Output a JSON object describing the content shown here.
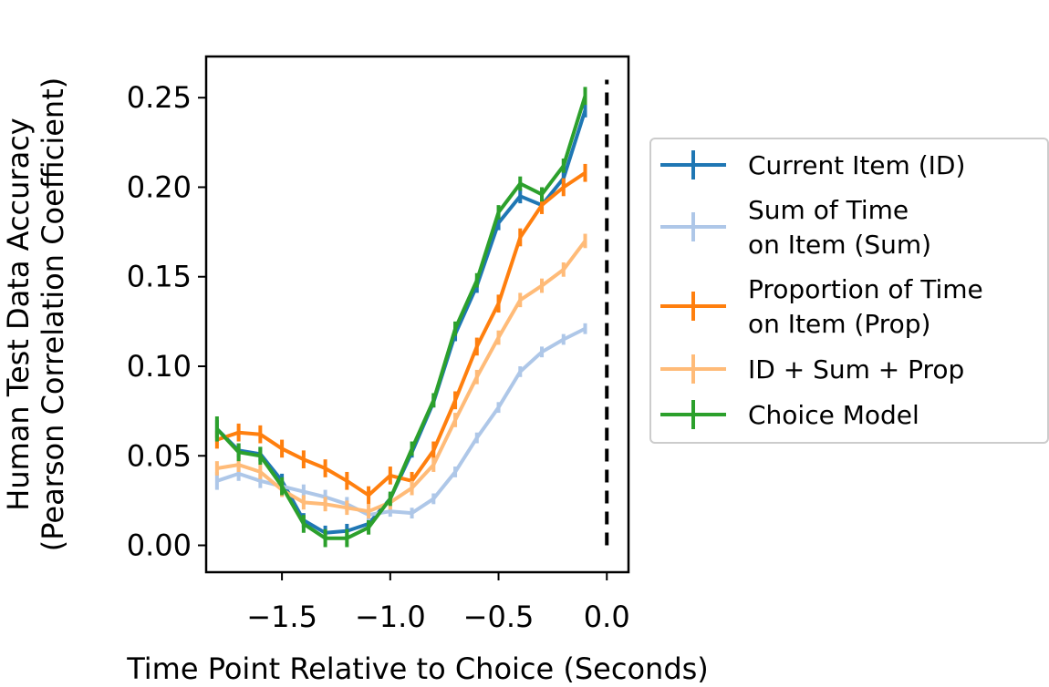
{
  "chart_data": {
    "type": "line",
    "title": "",
    "xlabel": "Time Point Relative to Choice (Seconds)",
    "ylabel_line1": "Human Test Data Accuracy",
    "ylabel_line2": "(Pearson Correlation Coefficient)",
    "xlim": [
      -1.85,
      0.1
    ],
    "ylim": [
      -0.015,
      0.273
    ],
    "xticks": [
      -1.5,
      -1.0,
      -0.5,
      0.0
    ],
    "xtick_labels": [
      "−1.5",
      "−1.0",
      "−0.5",
      "0.0"
    ],
    "yticks": [
      0.0,
      0.05,
      0.1,
      0.15,
      0.2,
      0.25
    ],
    "ytick_labels": [
      "0.00",
      "0.05",
      "0.10",
      "0.15",
      "0.20",
      "0.25"
    ],
    "vline": {
      "x": 0.0,
      "y_range": [
        0.0,
        0.26
      ],
      "style": "dashed",
      "color": "#000000"
    },
    "legend_position": "right, outside plot",
    "x": [
      -1.8,
      -1.7,
      -1.6,
      -1.5,
      -1.4,
      -1.3,
      -1.2,
      -1.1,
      -1.0,
      -0.9,
      -0.8,
      -0.7,
      -0.6,
      -0.5,
      -0.4,
      -0.3,
      -0.2,
      -0.1
    ],
    "series": [
      {
        "name": "Current Item (ID)",
        "legend_lines": [
          "Current Item (ID)"
        ],
        "color": "#1f77b4",
        "values": [
          0.065,
          0.053,
          0.051,
          0.036,
          0.014,
          0.007,
          0.008,
          0.012,
          0.026,
          0.052,
          0.08,
          0.118,
          0.145,
          0.18,
          0.195,
          0.19,
          0.205,
          0.243
        ],
        "errors": [
          0.005,
          0.004,
          0.004,
          0.004,
          0.004,
          0.004,
          0.004,
          0.003,
          0.003,
          0.003,
          0.003,
          0.004,
          0.004,
          0.004,
          0.004,
          0.003,
          0.004,
          0.004
        ]
      },
      {
        "name": "Sum of Time on Item (Sum)",
        "legend_lines": [
          "Sum of Time",
          "on Item (Sum)"
        ],
        "color": "#aec7e8",
        "values": [
          0.036,
          0.04,
          0.036,
          0.033,
          0.03,
          0.027,
          0.023,
          0.017,
          0.019,
          0.018,
          0.026,
          0.041,
          0.06,
          0.077,
          0.097,
          0.108,
          0.115,
          0.121
        ],
        "errors": [
          0.005,
          0.004,
          0.004,
          0.004,
          0.004,
          0.004,
          0.004,
          0.003,
          0.003,
          0.003,
          0.003,
          0.003,
          0.003,
          0.003,
          0.003,
          0.003,
          0.003,
          0.003
        ]
      },
      {
        "name": "Proportion of Time on Item (Prop)",
        "legend_lines": [
          "Proportion of Time",
          "on Item (Prop)"
        ],
        "color": "#ff7f0e",
        "values": [
          0.059,
          0.063,
          0.062,
          0.054,
          0.048,
          0.043,
          0.036,
          0.028,
          0.039,
          0.036,
          0.053,
          0.081,
          0.111,
          0.135,
          0.172,
          0.19,
          0.2,
          0.208
        ],
        "errors": [
          0.005,
          0.005,
          0.005,
          0.005,
          0.005,
          0.005,
          0.005,
          0.005,
          0.005,
          0.005,
          0.005,
          0.005,
          0.005,
          0.005,
          0.005,
          0.005,
          0.005,
          0.005
        ]
      },
      {
        "name": "ID + Sum + Prop",
        "legend_lines": [
          "ID + Sum + Prop"
        ],
        "color": "#ffbb78",
        "values": [
          0.043,
          0.045,
          0.041,
          0.031,
          0.024,
          0.023,
          0.021,
          0.019,
          0.024,
          0.032,
          0.045,
          0.07,
          0.094,
          0.116,
          0.137,
          0.145,
          0.154,
          0.17
        ],
        "errors": [
          0.004,
          0.004,
          0.004,
          0.004,
          0.004,
          0.004,
          0.004,
          0.004,
          0.004,
          0.004,
          0.004,
          0.004,
          0.004,
          0.004,
          0.004,
          0.004,
          0.004,
          0.004
        ]
      },
      {
        "name": "Choice Model",
        "legend_lines": [
          "Choice Model"
        ],
        "color": "#2ca02c",
        "values": [
          0.065,
          0.052,
          0.05,
          0.033,
          0.012,
          0.004,
          0.004,
          0.01,
          0.026,
          0.054,
          0.081,
          0.121,
          0.148,
          0.186,
          0.202,
          0.196,
          0.212,
          0.251
        ],
        "errors": [
          0.007,
          0.005,
          0.005,
          0.005,
          0.005,
          0.005,
          0.005,
          0.004,
          0.004,
          0.004,
          0.004,
          0.004,
          0.004,
          0.004,
          0.004,
          0.004,
          0.004,
          0.005
        ]
      }
    ]
  }
}
